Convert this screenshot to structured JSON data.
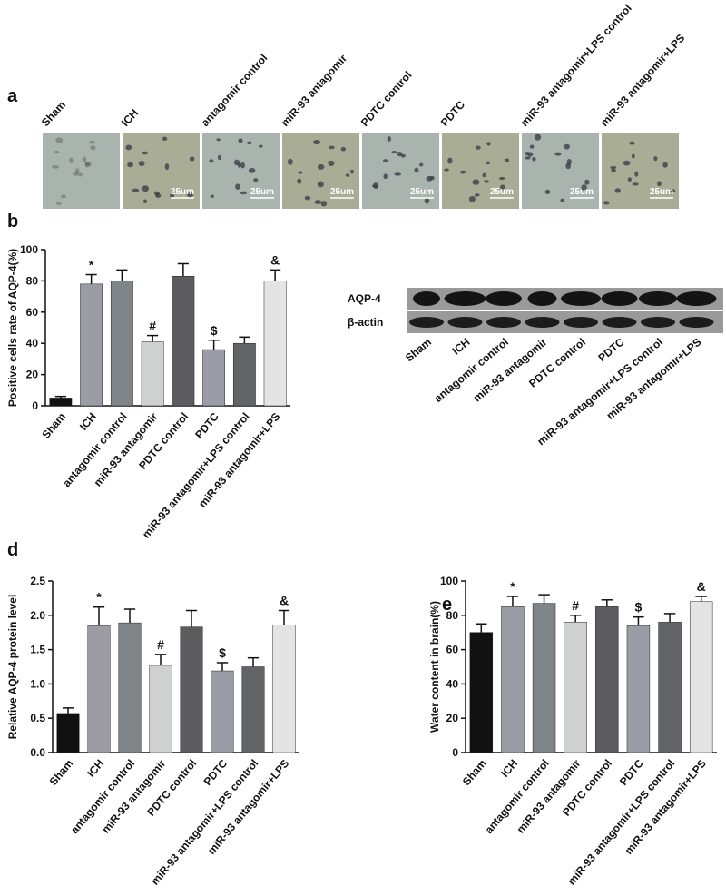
{
  "panel_a": {
    "label": "a",
    "images": [
      {
        "name": "Sham"
      },
      {
        "name": "ICH",
        "scale": "25um"
      },
      {
        "name": "antagomir control",
        "scale": "25um"
      },
      {
        "name": "miR-93 antagomir",
        "scale": "25um"
      },
      {
        "name": "PDTC control",
        "scale": "25um"
      },
      {
        "name": "PDTC",
        "scale": "25um"
      },
      {
        "name": "miR-93 antagomir+LPS control",
        "scale": "25um"
      },
      {
        "name": "miR-93 antagomir+LPS",
        "scale": "25um"
      }
    ]
  },
  "blot": {
    "rows": [
      "AQP-4",
      "β-actin"
    ],
    "categories": [
      "Sham",
      "ICH",
      "antagomir control",
      "miR-93 antagomir",
      "PDTC control",
      "PDTC",
      "miR-93 antagomir+LPS control",
      "miR-93 antagomir+LPS"
    ]
  },
  "chart_data": [
    {
      "type": "bar",
      "panel": "b",
      "ylabel": "Positive cells rate of AQP-4(%)",
      "categories": [
        "Sham",
        "ICH",
        "antagomir control",
        "miR-93 antagomir",
        "PDTC control",
        "PDTC",
        "miR-93 antagomir+LPS control",
        "miR-93 antagomir+LPS"
      ],
      "values": [
        5,
        78,
        80,
        41,
        83,
        36,
        40,
        80
      ],
      "errors": [
        1,
        6,
        7,
        4,
        8,
        6,
        4,
        7
      ],
      "markers": [
        null,
        "*",
        null,
        "#",
        null,
        "$",
        null,
        "&"
      ],
      "colors": [
        "#111111",
        "#9a9ea4",
        "#7f8489",
        "#cfd0d0",
        "#5b5b60",
        "#9b9da6",
        "#636468",
        "#e4e4e4"
      ],
      "ylim": [
        0,
        100
      ],
      "yticks": [
        0,
        20,
        40,
        60,
        80,
        100
      ]
    },
    {
      "type": "bar",
      "panel": "d",
      "ylabel": "Relative AQP-4 protein level",
      "categories": [
        "Sham",
        "ICH",
        "antagomir control",
        "miR-93 antagomir",
        "PDTC control",
        "PDTC",
        "miR-93 antagomir+LPS control",
        "miR-93 antagomir+LPS"
      ],
      "values": [
        0.57,
        1.85,
        1.89,
        1.27,
        1.83,
        1.19,
        1.25,
        1.86
      ],
      "errors": [
        0.08,
        0.27,
        0.2,
        0.16,
        0.24,
        0.12,
        0.13,
        0.21
      ],
      "markers": [
        null,
        "*",
        null,
        "#",
        null,
        "$",
        null,
        "&"
      ],
      "colors": [
        "#111111",
        "#9a9ea4",
        "#7f8489",
        "#cfd0d0",
        "#5b5b60",
        "#9b9da6",
        "#636468",
        "#e4e4e4"
      ],
      "ylim": [
        0,
        2.5
      ],
      "yticks": [
        {
          "value": 0,
          "label": "0.0"
        },
        0.5,
        {
          "value": 1,
          "label": "1.0"
        },
        1.5,
        {
          "value": 2,
          "label": "2.0"
        },
        2.5
      ]
    },
    {
      "type": "bar",
      "panel": "e",
      "ylabel": "Water content in brain(%)",
      "categories": [
        "Sham",
        "ICH",
        "antagomir control",
        "miR-93 antagomir",
        "PDTC control",
        "PDTC",
        "miR-93 antagomir+LPS control",
        "miR-93 antagomir+LPS"
      ],
      "values": [
        70,
        85,
        87,
        76,
        85,
        74,
        76,
        88
      ],
      "errors": [
        5,
        6,
        5,
        4,
        4,
        5,
        5,
        3
      ],
      "markers": [
        null,
        "*",
        null,
        "#",
        null,
        "$",
        null,
        "&"
      ],
      "colors": [
        "#111111",
        "#9a9ea4",
        "#7f8489",
        "#cfd0d0",
        "#5b5b60",
        "#9b9da6",
        "#636468",
        "#e4e4e4"
      ],
      "ylim": [
        0,
        100
      ],
      "yticks": [
        0,
        20,
        40,
        60,
        80,
        100
      ]
    }
  ]
}
